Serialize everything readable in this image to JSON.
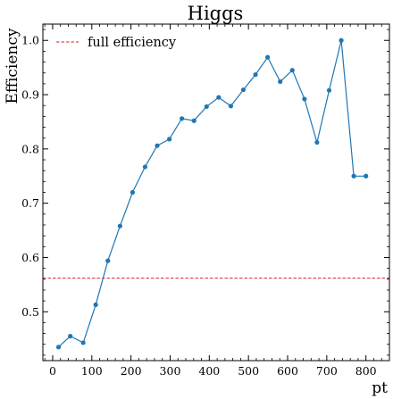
{
  "chart_data": {
    "type": "line",
    "title": "Higgs",
    "xlabel": "pt",
    "ylabel": "Efficiency",
    "xlim": [
      -25,
      860
    ],
    "ylim": [
      0.41,
      1.03
    ],
    "xticks": [
      0,
      100,
      200,
      300,
      400,
      500,
      600,
      700,
      800
    ],
    "yticks": [
      0.5,
      0.6,
      0.7,
      0.8,
      0.9,
      1.0
    ],
    "xtick_labels": [
      "0",
      "100",
      "200",
      "300",
      "400",
      "500",
      "600",
      "700",
      "800"
    ],
    "ytick_labels": [
      "0.5",
      "0.6",
      "0.7",
      "0.8",
      "0.9",
      "1.0"
    ],
    "grid": false,
    "legend_position": "top-left",
    "series": [
      {
        "color": "#1f77b4",
        "x": [
          15,
          45,
          78,
          110,
          141,
          172,
          204,
          236,
          267,
          298,
          330,
          361,
          393,
          424,
          455,
          487,
          518,
          549,
          581,
          612,
          643,
          675,
          706,
          737,
          769,
          800
        ],
        "y": [
          0.435,
          0.455,
          0.443,
          0.513,
          0.594,
          0.658,
          0.72,
          0.767,
          0.806,
          0.818,
          0.856,
          0.852,
          0.878,
          0.895,
          0.879,
          0.909,
          0.937,
          0.969,
          0.924,
          0.945,
          0.892,
          0.812,
          0.908,
          1.0,
          0.75,
          0.75
        ]
      }
    ],
    "reference_line": {
      "name": "full efficiency",
      "y": 0.562,
      "color": "#d62728",
      "style": "dashed"
    }
  }
}
